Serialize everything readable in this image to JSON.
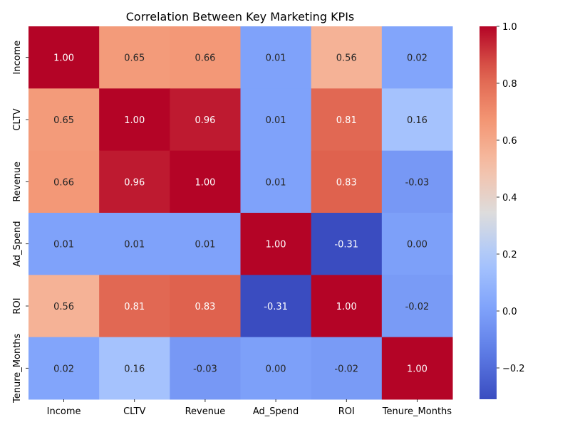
{
  "chart_data": {
    "type": "heatmap",
    "title": "Correlation Between Key Marketing KPIs",
    "x_labels": [
      "Income",
      "CLTV",
      "Revenue",
      "Ad_Spend",
      "ROI",
      "Tenure_Months"
    ],
    "y_labels": [
      "Income",
      "CLTV",
      "Revenue",
      "Ad_Spend",
      "ROI",
      "Tenure_Months"
    ],
    "values": [
      [
        1.0,
        0.65,
        0.66,
        0.01,
        0.56,
        0.02
      ],
      [
        0.65,
        1.0,
        0.96,
        0.01,
        0.81,
        0.16
      ],
      [
        0.66,
        0.96,
        1.0,
        0.01,
        0.83,
        -0.03
      ],
      [
        0.01,
        0.01,
        0.01,
        1.0,
        -0.31,
        0.0
      ],
      [
        0.56,
        0.81,
        0.83,
        -0.31,
        1.0,
        -0.02
      ],
      [
        0.02,
        0.16,
        -0.03,
        0.0,
        -0.02,
        1.0
      ]
    ],
    "value_format": "0.00",
    "colormap": "coolwarm",
    "vmin": -0.31,
    "vmax": 1.0,
    "colorbar_ticks": [
      -0.2,
      0.0,
      0.2,
      0.4,
      0.6,
      0.8,
      1.0
    ],
    "colorbar_tick_labels": [
      "−0.2",
      "0.0",
      "0.2",
      "0.4",
      "0.6",
      "0.8",
      "1.0"
    ],
    "grid": false
  }
}
